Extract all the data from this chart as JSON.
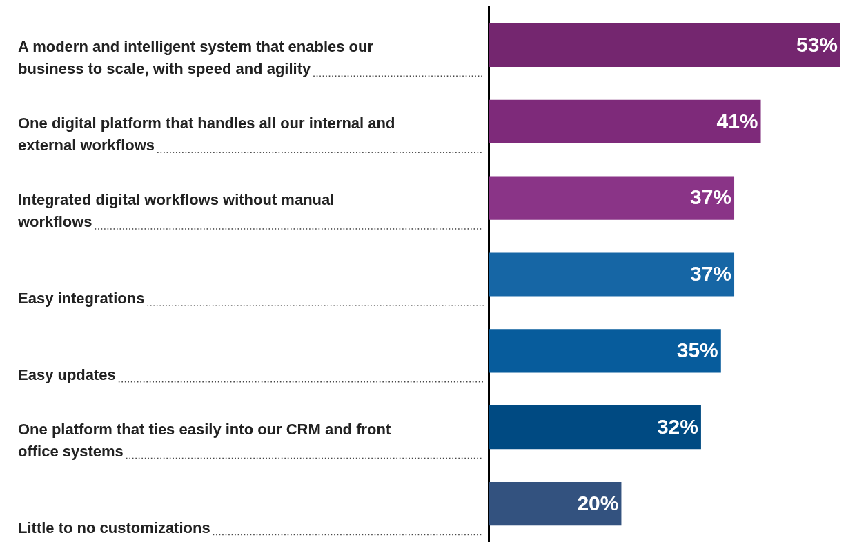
{
  "chart_data": {
    "type": "bar",
    "orientation": "horizontal",
    "categories": [
      "A modern and intelligent system that enables our business to scale, with speed and agility",
      "One digital platform that handles all our internal and external workflows",
      "Integrated digital workflows without manual workflows",
      "Easy integrations",
      "Easy updates",
      "One platform that ties easily into our CRM and front office systems",
      "Little to no customizations"
    ],
    "values": [
      53,
      41,
      37,
      37,
      35,
      32,
      20
    ],
    "colors": [
      "#74266f",
      "#7e2a7a",
      "#8a3487",
      "#1666a5",
      "#075c9c",
      "#004a82",
      "#33527f"
    ],
    "value_labels": [
      "53%",
      "41%",
      "37%",
      "37%",
      "35%",
      "32%",
      "20%"
    ]
  }
}
